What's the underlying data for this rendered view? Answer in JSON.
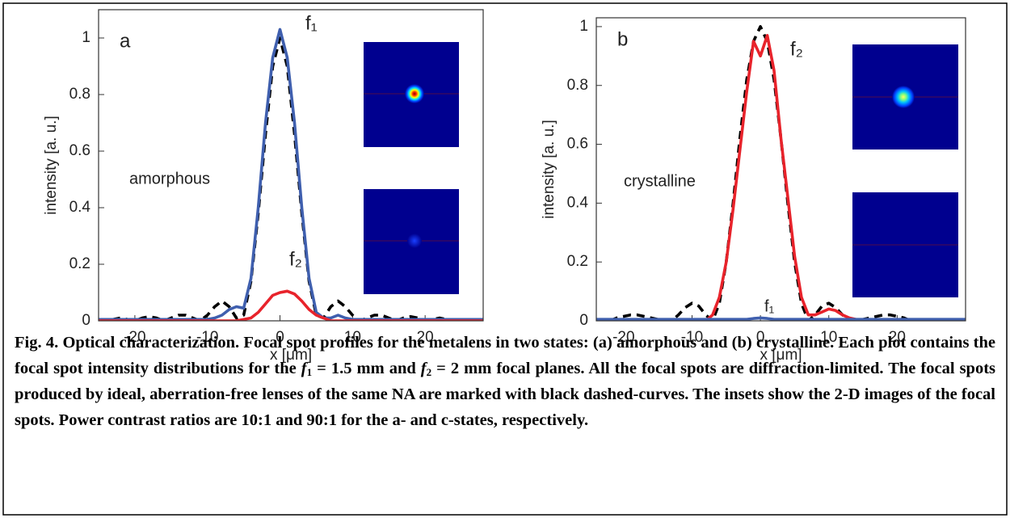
{
  "chart_data": [
    {
      "type": "line",
      "x_label": "x [μm]",
      "y_label": "intensity [a. u.]",
      "annotations": [
        "a",
        "f₁",
        "amorphous",
        "f₂"
      ],
      "xlim": [
        -25,
        28
      ],
      "ylim": [
        0,
        1.1
      ],
      "xticks": [
        -20,
        -10,
        0,
        10,
        20
      ],
      "yticks": [
        0,
        0.2,
        0.4,
        0.6,
        0.8,
        1
      ],
      "x": [
        -25,
        -24,
        -23,
        -22,
        -21,
        -20,
        -19,
        -18,
        -17,
        -16,
        -15,
        -14,
        -13,
        -12,
        -11,
        -10,
        -9,
        -8,
        -7,
        -6,
        -5,
        -4,
        -3,
        -2,
        -1,
        0,
        1,
        2,
        3,
        4,
        5,
        6,
        7,
        8,
        9,
        10,
        11,
        12,
        13,
        14,
        15,
        16,
        17,
        18,
        19,
        20,
        21,
        22,
        23,
        24,
        25,
        26,
        27,
        28
      ],
      "series": [
        {
          "color": "#000000",
          "linestyle": "dashed",
          "values": [
            0,
            0,
            0.005,
            0.01,
            0.005,
            0,
            0.01,
            0.015,
            0.01,
            0,
            0.01,
            0.02,
            0.02,
            0.01,
            0,
            0.02,
            0.05,
            0.07,
            0.05,
            0.01,
            0.02,
            0.14,
            0.38,
            0.66,
            0.9,
            1.0,
            0.9,
            0.66,
            0.38,
            0.14,
            0.02,
            0.01,
            0.05,
            0.07,
            0.05,
            0.02,
            0,
            0.01,
            0.02,
            0.02,
            0.01,
            0,
            0.01,
            0.015,
            0.01,
            0,
            0.005,
            0.01,
            0.005,
            0,
            0,
            0.005,
            0,
            0
          ]
        },
        {
          "color": "#3f5fae",
          "linestyle": "solid",
          "values": [
            0.005,
            0.005,
            0.005,
            0.005,
            0.005,
            0.005,
            0.005,
            0.005,
            0.005,
            0.005,
            0.005,
            0.005,
            0.005,
            0.005,
            0.005,
            0.005,
            0.01,
            0.02,
            0.04,
            0.05,
            0.045,
            0.15,
            0.4,
            0.7,
            0.93,
            1.03,
            0.93,
            0.7,
            0.4,
            0.15,
            0.03,
            0.01,
            0.01,
            0.02,
            0.01,
            0.005,
            0.005,
            0.005,
            0.005,
            0.005,
            0.005,
            0.005,
            0.005,
            0.005,
            0.005,
            0.005,
            0.005,
            0.005,
            0.005,
            0.005,
            0.005,
            0.005,
            0.005,
            0.005
          ]
        },
        {
          "color": "#e8232b",
          "linestyle": "solid",
          "values": [
            0,
            0,
            0,
            0,
            0,
            0,
            0,
            0,
            0,
            0,
            0,
            0,
            0,
            0,
            0,
            0,
            0,
            0,
            0,
            0,
            0.005,
            0.01,
            0.03,
            0.06,
            0.09,
            0.1,
            0.105,
            0.095,
            0.07,
            0.04,
            0.02,
            0.01,
            0,
            0,
            0,
            0,
            0,
            0,
            0,
            0,
            0,
            0,
            0,
            0,
            0,
            0,
            0,
            0,
            0,
            0,
            0,
            0,
            0,
            0
          ]
        }
      ]
    },
    {
      "type": "line",
      "x_label": "x [μm]",
      "y_label": "intensity [a. u.]",
      "annotations": [
        "b",
        "f₂",
        "crystalline",
        "f₁"
      ],
      "xlim": [
        -24,
        30
      ],
      "ylim": [
        0,
        1.03
      ],
      "xticks": [
        -20,
        -10,
        0,
        10,
        20
      ],
      "yticks": [
        0,
        0.2,
        0.4,
        0.6,
        0.8,
        1
      ],
      "x": [
        -24,
        -23,
        -22,
        -21,
        -20,
        -19,
        -18,
        -17,
        -16,
        -15,
        -14,
        -13,
        -12,
        -11,
        -10,
        -9,
        -8,
        -7,
        -6,
        -5,
        -4,
        -3,
        -2,
        -1,
        0,
        1,
        2,
        3,
        4,
        5,
        6,
        7,
        8,
        9,
        10,
        11,
        12,
        13,
        14,
        15,
        16,
        17,
        18,
        19,
        20,
        21,
        22,
        23,
        24,
        25,
        26,
        27,
        28,
        29,
        30
      ],
      "series": [
        {
          "color": "#000000",
          "linestyle": "dashed",
          "values": [
            0,
            0,
            0,
            0.01,
            0.015,
            0.02,
            0.02,
            0.015,
            0.01,
            0.005,
            0,
            0,
            0.02,
            0.045,
            0.06,
            0.05,
            0.02,
            0,
            0.06,
            0.2,
            0.4,
            0.62,
            0.82,
            0.95,
            1.0,
            0.95,
            0.82,
            0.62,
            0.4,
            0.2,
            0.06,
            0,
            0.02,
            0.05,
            0.06,
            0.045,
            0.02,
            0,
            0,
            0.005,
            0.01,
            0.015,
            0.02,
            0.02,
            0.015,
            0.01,
            0,
            0,
            0,
            0,
            0,
            0,
            0,
            0,
            0
          ]
        },
        {
          "color": "#e8232b",
          "linestyle": "solid",
          "values": [
            0,
            0,
            0,
            0,
            0,
            0,
            0,
            0,
            0,
            0,
            0,
            0,
            0,
            0,
            0,
            0,
            0,
            0.02,
            0.08,
            0.2,
            0.38,
            0.58,
            0.78,
            0.95,
            0.9,
            0.97,
            0.85,
            0.62,
            0.42,
            0.22,
            0.08,
            0.02,
            0.02,
            0.03,
            0.04,
            0.035,
            0.02,
            0.01,
            0.005,
            0,
            0,
            0,
            0,
            0,
            0,
            0,
            0,
            0,
            0,
            0,
            0,
            0,
            0,
            0,
            0
          ]
        },
        {
          "color": "#3f5fae",
          "linestyle": "solid",
          "values": [
            0.005,
            0.005,
            0.005,
            0.005,
            0.005,
            0.005,
            0.005,
            0.005,
            0.005,
            0.005,
            0.005,
            0.005,
            0.005,
            0.005,
            0.005,
            0.005,
            0.005,
            0.005,
            0.005,
            0.005,
            0.005,
            0.005,
            0.005,
            0.008,
            0.01,
            0.008,
            0.005,
            0.005,
            0.005,
            0.005,
            0.005,
            0.005,
            0.005,
            0.005,
            0.005,
            0.005,
            0.005,
            0.005,
            0.005,
            0.005,
            0.005,
            0.005,
            0.005,
            0.005,
            0.005,
            0.005,
            0.005,
            0.005,
            0.005,
            0.005,
            0.005,
            0.005,
            0.005,
            0.005,
            0.005
          ]
        }
      ]
    }
  ],
  "caption": [
    "Fig. 4. Optical characterization. Focal spot profiles for the metalens in two states: (a) amorphous and (b) crystalline. Each plot contains the focal spot intensity distributions for the ",
    "f",
    "1",
    " = 1.5 mm and ",
    "f",
    "2",
    " = 2 mm focal planes. All the focal spots are diffraction-limited. The focal spots produced by ideal, aberration-free lenses of the same NA are marked with black dashed-curves. The insets show the 2-D images of the focal spots. Power contrast ratios are 10:1 and 90:1 for the a- and c-states, respectively."
  ]
}
